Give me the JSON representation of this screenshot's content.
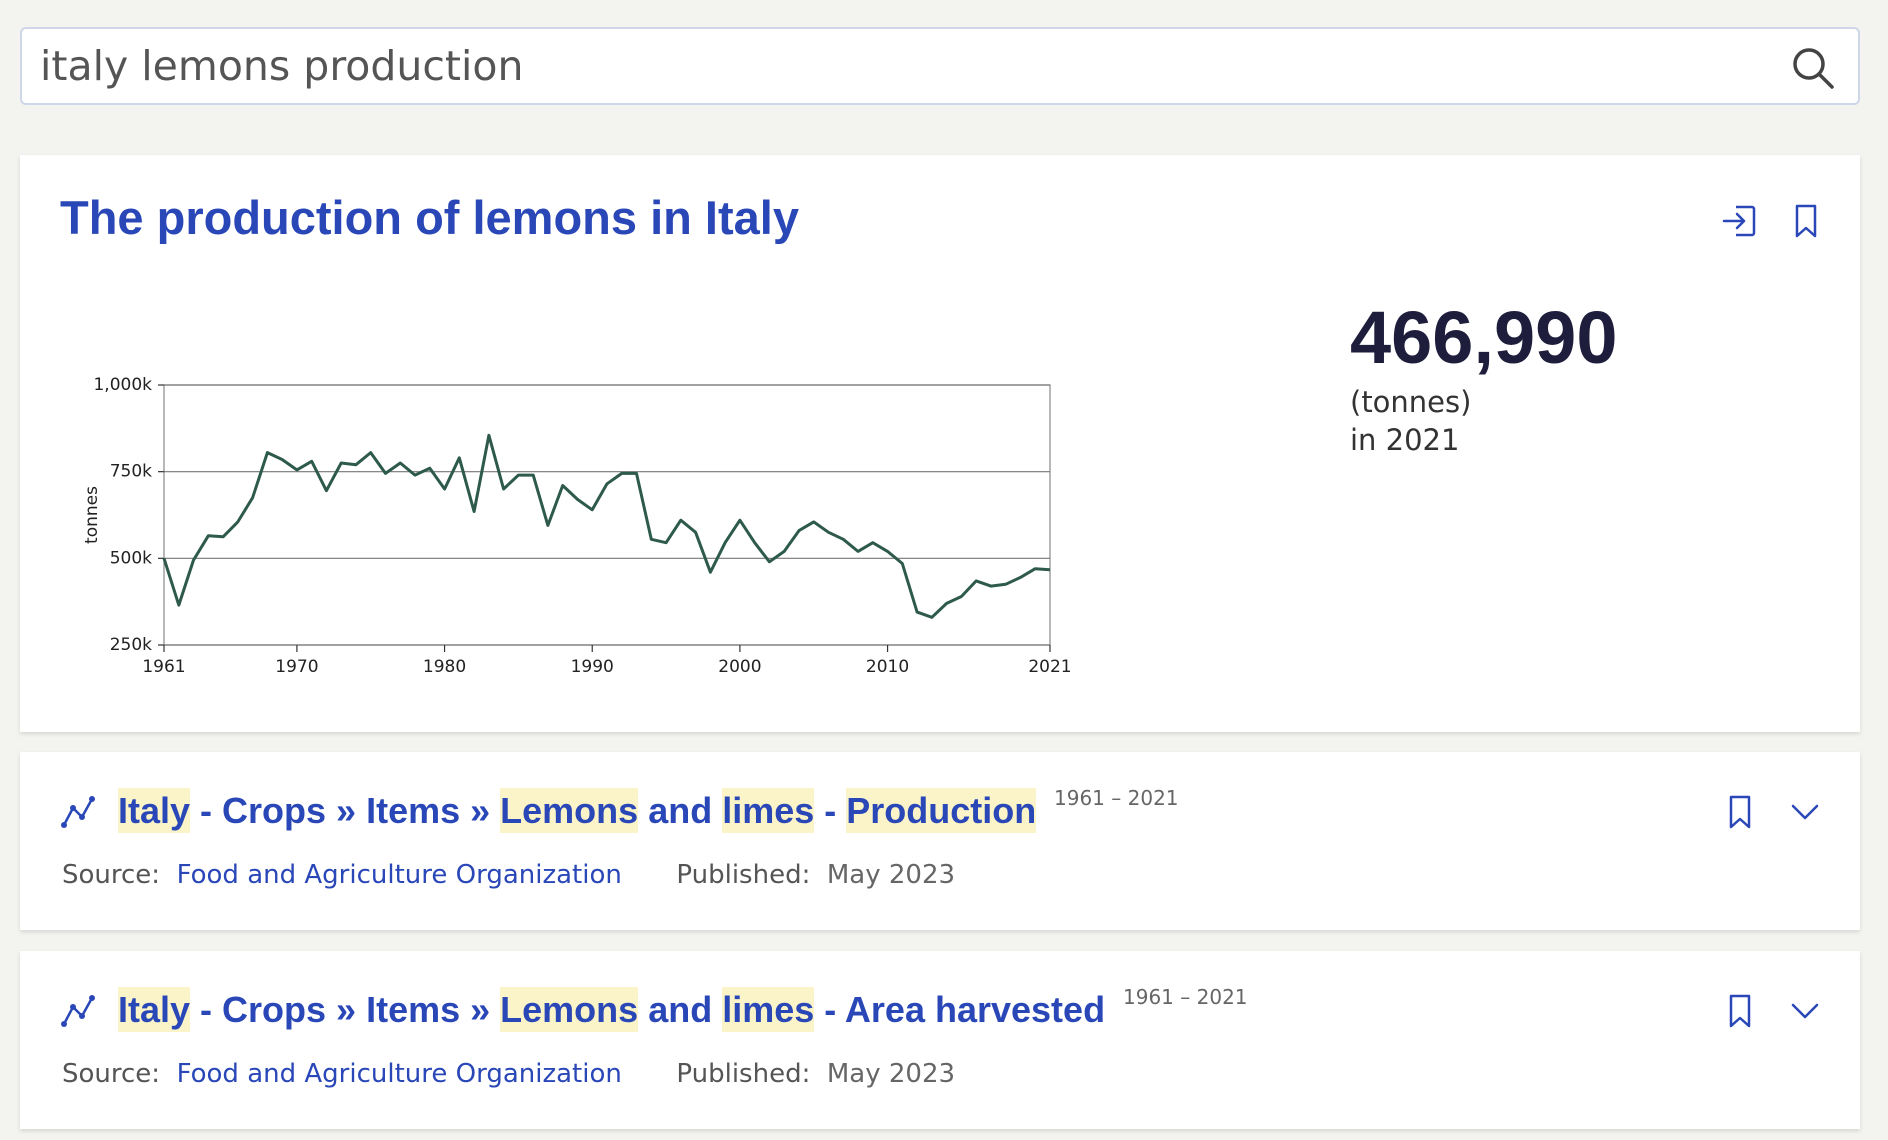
{
  "search": {
    "query": "italy lemons production"
  },
  "icons": {
    "search": "search-icon",
    "open_in": "login-icon",
    "bookmark": "bookmark-icon",
    "expand": "chevron-down-icon",
    "series": "line-chart-icon"
  },
  "colors": {
    "accent": "#2a47b8",
    "line": "#2d5a4a",
    "highlight": "#faf4c8",
    "value": "#1e1e3c"
  },
  "featured": {
    "title": "The production of lemons in Italy",
    "value": "466,990",
    "unit": "(tonnes)",
    "year": "in 2021"
  },
  "chart_data": {
    "type": "line",
    "xlabel": "",
    "ylabel": "tonnes",
    "xlim": [
      1961,
      2021
    ],
    "ylim": [
      250000,
      1000000
    ],
    "x_ticks": [
      "1961",
      "1970",
      "1980",
      "1990",
      "2000",
      "2010",
      "2021"
    ],
    "y_ticks": [
      "250k",
      "500k",
      "750k",
      "1,000k"
    ],
    "grid": "horizontal",
    "x": [
      1961,
      1962,
      1963,
      1964,
      1965,
      1966,
      1967,
      1968,
      1969,
      1970,
      1971,
      1972,
      1973,
      1974,
      1975,
      1976,
      1977,
      1978,
      1979,
      1980,
      1981,
      1982,
      1983,
      1984,
      1985,
      1986,
      1987,
      1988,
      1989,
      1990,
      1991,
      1992,
      1993,
      1994,
      1995,
      1996,
      1997,
      1998,
      1999,
      2000,
      2001,
      2002,
      2003,
      2004,
      2005,
      2006,
      2007,
      2008,
      2009,
      2010,
      2011,
      2012,
      2013,
      2014,
      2015,
      2016,
      2017,
      2018,
      2019,
      2020,
      2021
    ],
    "series": [
      {
        "values": [
          500000,
          365000,
          495000,
          565000,
          562000,
          605000,
          675000,
          805000,
          785000,
          755000,
          780000,
          695000,
          775000,
          770000,
          805000,
          745000,
          775000,
          740000,
          760000,
          700000,
          790000,
          635000,
          855000,
          700000,
          740000,
          740000,
          595000,
          710000,
          670000,
          640000,
          715000,
          745000,
          745000,
          555000,
          545000,
          610000,
          575000,
          460000,
          545000,
          610000,
          545000,
          490000,
          520000,
          580000,
          605000,
          575000,
          555000,
          520000,
          545000,
          520000,
          485000,
          345000,
          330000,
          370000,
          390000,
          435000,
          420000,
          425000,
          445000,
          470000,
          466990
        ]
      }
    ]
  },
  "results": [
    {
      "parts": [
        {
          "text": "Italy",
          "hl": true
        },
        {
          "text": " - Crops » Items » ",
          "hl": false
        },
        {
          "text": "Lemons",
          "hl": true
        },
        {
          "text": " and ",
          "hl": false
        },
        {
          "text": "limes",
          "hl": true
        },
        {
          "text": " - ",
          "hl": false
        },
        {
          "text": "Production",
          "hl": true
        }
      ],
      "years": "1961 – 2021",
      "source_label": "Source:",
      "source": "Food and Agriculture Organization",
      "published_label": "Published:",
      "published": "May 2023"
    },
    {
      "parts": [
        {
          "text": "Italy",
          "hl": true
        },
        {
          "text": " - Crops » Items » ",
          "hl": false
        },
        {
          "text": "Lemons",
          "hl": true
        },
        {
          "text": " and ",
          "hl": false
        },
        {
          "text": "limes",
          "hl": true
        },
        {
          "text": " - Area harvested",
          "hl": false
        }
      ],
      "years": "1961 – 2021",
      "source_label": "Source:",
      "source": "Food and Agriculture Organization",
      "published_label": "Published:",
      "published": "May 2023"
    }
  ]
}
